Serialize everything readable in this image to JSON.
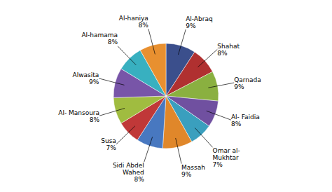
{
  "chart_data": {
    "type": "pie",
    "categories": [
      "Al-Abraq",
      "Shahat",
      "Qarnada",
      "Al- Faidia",
      "Omar al-\nMukhtar",
      "Massah",
      "Sidi Abdel\nWahed",
      "Susa",
      "Al- Mansoura",
      "Alwasita",
      "Al-hamama",
      "Al-haniya"
    ],
    "values": [
      9,
      8,
      9,
      8,
      7,
      9,
      8,
      7,
      8,
      9,
      8,
      8
    ],
    "value_labels": [
      "9%",
      "8%",
      "9%",
      "8%",
      "7%",
      "9%",
      "8%",
      "7%",
      "8%",
      "9%",
      "8%",
      "8%"
    ],
    "colors": [
      "#3b4f8c",
      "#b03030",
      "#8ab040",
      "#7050a0",
      "#3a9fbe",
      "#e0872a",
      "#4878c0",
      "#c03838",
      "#a0bc40",
      "#7855a8",
      "#38b0c0",
      "#e89030"
    ],
    "data_labels": true
  }
}
